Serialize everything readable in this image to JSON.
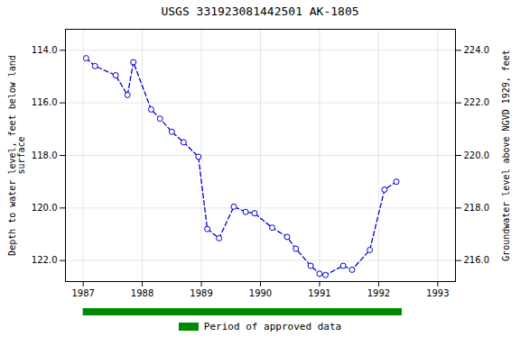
{
  "chart_data": {
    "type": "line",
    "title": "USGS 331923081442501 AK-1805",
    "ylabel": "Depth to water level, feet below land\nsurface",
    "y2label": "Groundwater level above NGVD 1929, feet",
    "x": [
      1987.05,
      1987.2,
      1987.55,
      1987.75,
      1987.85,
      1988.15,
      1988.3,
      1988.5,
      1988.7,
      1988.95,
      1989.1,
      1989.3,
      1989.55,
      1989.75,
      1989.9,
      1990.2,
      1990.45,
      1990.6,
      1990.85,
      1991.0,
      1991.1,
      1991.4,
      1991.55,
      1991.85,
      1992.1,
      1992.3
    ],
    "values": [
      114.3,
      114.6,
      114.95,
      115.7,
      114.45,
      116.25,
      116.6,
      117.1,
      117.5,
      118.05,
      120.8,
      121.15,
      119.95,
      120.15,
      120.2,
      120.75,
      121.1,
      121.55,
      122.2,
      122.5,
      122.55,
      122.2,
      122.35,
      121.6,
      119.3,
      119.0
    ],
    "color": "#0000CC",
    "marker": "circle",
    "line_style": "dashed",
    "xlim": [
      1986.7,
      1993.3
    ],
    "xticks": [
      1987,
      1988,
      1989,
      1990,
      1991,
      1992,
      1993
    ],
    "ylim": [
      122.8,
      113.2
    ],
    "yticks": [
      {
        "value": 114.0,
        "label": "114.0"
      },
      {
        "value": 116.0,
        "label": "116.0"
      },
      {
        "value": 118.0,
        "label": "118.0"
      },
      {
        "value": 120.0,
        "label": "120.0"
      },
      {
        "value": 122.0,
        "label": "122.0"
      }
    ],
    "y2lim": [
      215.2,
      224.8
    ],
    "y2ticks": [
      {
        "value": 216.0,
        "label": "216.0"
      },
      {
        "value": 218.0,
        "label": "218.0"
      },
      {
        "value": 220.0,
        "label": "220.0"
      },
      {
        "value": 222.0,
        "label": "222.0"
      },
      {
        "value": 224.0,
        "label": "224.0"
      }
    ],
    "grid": true,
    "approved_period": {
      "label": "Period of approved data",
      "start": 1987.0,
      "end": 1992.4,
      "color": "#008800"
    }
  }
}
